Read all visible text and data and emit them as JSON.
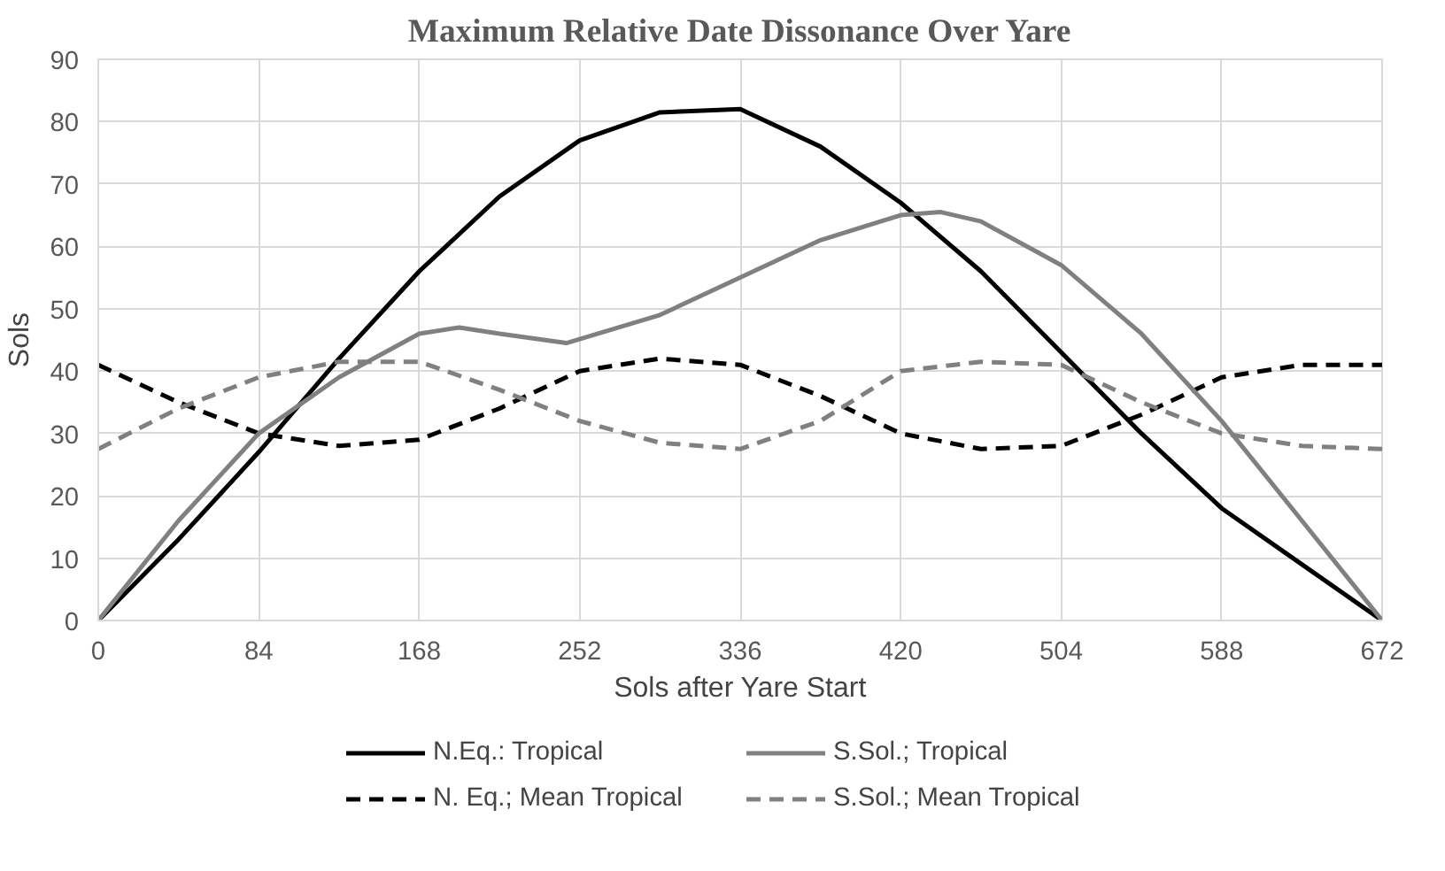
{
  "chart_data": {
    "type": "line",
    "title": "Maximum Relative Date Dissonance Over Yare",
    "xlabel": "Sols after Yare Start",
    "ylabel": "Sols",
    "xlim": [
      0,
      672
    ],
    "xticks": [
      0,
      84,
      168,
      252,
      336,
      420,
      504,
      588,
      672
    ],
    "ylim": [
      0,
      90
    ],
    "yticks": [
      0,
      10,
      20,
      30,
      40,
      50,
      60,
      70,
      80,
      90
    ],
    "grid": true,
    "legend": "bottom",
    "marker": "none",
    "series": [
      {
        "name": "N.Eq.: Tropical",
        "color": "#000000",
        "line_style": "solid",
        "x": [
          0,
          42,
          84,
          126,
          168,
          210,
          252,
          294,
          336,
          378,
          420,
          462,
          504,
          546,
          588,
          630,
          672
        ],
        "values": [
          0,
          13,
          27,
          42,
          56,
          68,
          77,
          81.5,
          82,
          76,
          67,
          56,
          43,
          30,
          18,
          9,
          0
        ]
      },
      {
        "name": "N. Eq.; Mean Tropical",
        "color": "#000000",
        "line_style": "dashed",
        "x": [
          0,
          42,
          84,
          126,
          168,
          210,
          252,
          294,
          336,
          378,
          420,
          462,
          504,
          546,
          588,
          630,
          672
        ],
        "values": [
          41,
          35,
          30,
          28,
          29,
          34,
          40,
          42,
          41,
          36,
          30,
          27.5,
          28,
          33,
          39,
          41,
          41
        ]
      },
      {
        "name": "S.Sol.; Tropical",
        "color": "#808080",
        "line_style": "solid",
        "x": [
          0,
          42,
          84,
          126,
          168,
          189,
          210,
          245,
          294,
          336,
          378,
          420,
          441,
          462,
          504,
          546,
          588,
          630,
          672
        ],
        "values": [
          0,
          16,
          30,
          39,
          46,
          47,
          46,
          44.5,
          49,
          55,
          61,
          65,
          65.5,
          64,
          57,
          46,
          32,
          16,
          0
        ]
      },
      {
        "name": "S.Sol.; Mean Tropical",
        "color": "#808080",
        "line_style": "dashed",
        "x": [
          0,
          42,
          84,
          126,
          168,
          210,
          252,
          294,
          336,
          378,
          420,
          462,
          504,
          546,
          588,
          630,
          672
        ],
        "values": [
          27.5,
          34,
          39,
          41.5,
          41.5,
          37,
          32,
          28.5,
          27.5,
          32,
          40,
          41.5,
          41,
          35,
          30,
          28,
          27.5
        ]
      }
    ]
  }
}
